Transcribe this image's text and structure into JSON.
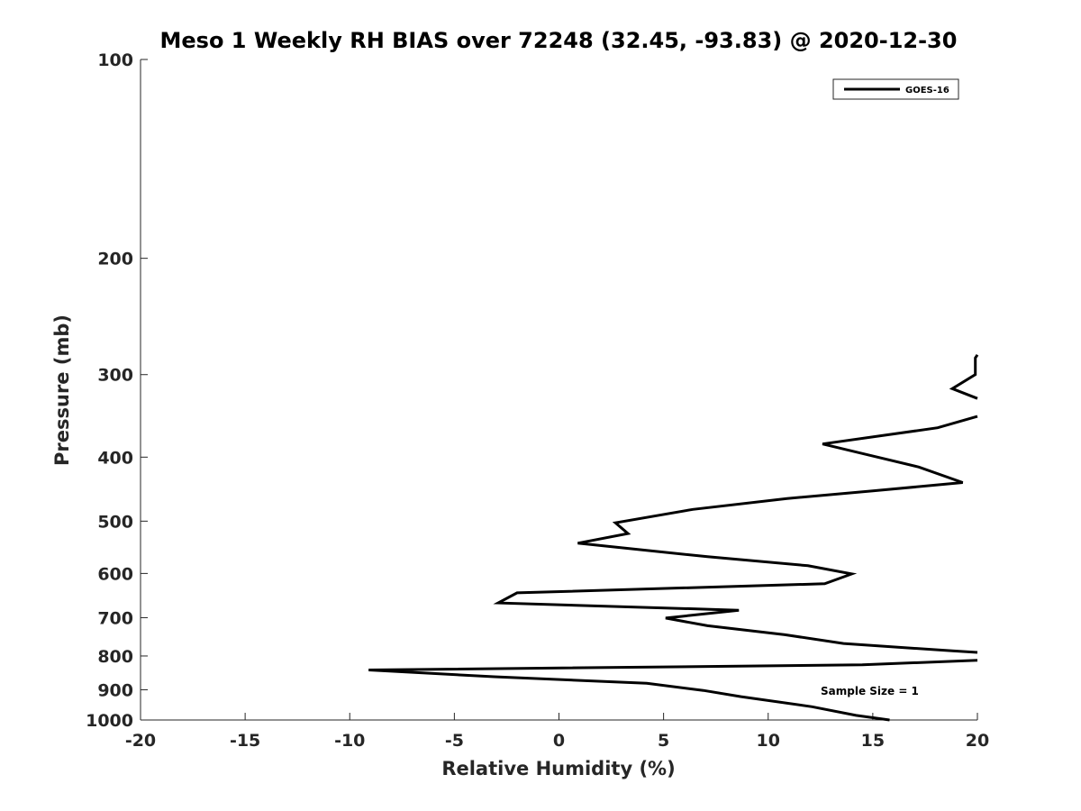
{
  "chart_data": {
    "type": "line",
    "title": "Meso 1 Weekly RH BIAS over 72248 (32.45, -93.83) @ 2020-12-30",
    "xlabel": "Relative Humidity (%)",
    "ylabel": "Pressure (mb)",
    "xlim": [
      -20,
      20
    ],
    "ylim": [
      100,
      1000
    ],
    "y_scale": "log",
    "y_reversed": true,
    "xticks": [
      -20,
      -15,
      -10,
      -5,
      0,
      5,
      10,
      15,
      20
    ],
    "yticks": [
      100,
      200,
      300,
      400,
      500,
      600,
      700,
      800,
      900,
      1000
    ],
    "grid": false,
    "legend_position": "top-right",
    "series": [
      {
        "name": "GOES-16",
        "color": "#000000",
        "segments": [
          [
            {
              "x": 20.0,
              "y": 280
            },
            {
              "x": 19.9,
              "y": 283
            },
            {
              "x": 19.9,
              "y": 300
            },
            {
              "x": 18.8,
              "y": 315
            },
            {
              "x": 20.0,
              "y": 326
            }
          ],
          [
            {
              "x": 20.0,
              "y": 347
            },
            {
              "x": 18.1,
              "y": 361
            },
            {
              "x": 12.6,
              "y": 382
            },
            {
              "x": 14.8,
              "y": 397
            },
            {
              "x": 17.2,
              "y": 414
            },
            {
              "x": 19.3,
              "y": 437
            },
            {
              "x": 15.0,
              "y": 450
            },
            {
              "x": 10.9,
              "y": 462
            },
            {
              "x": 6.4,
              "y": 480
            },
            {
              "x": 2.7,
              "y": 503
            },
            {
              "x": 3.3,
              "y": 522
            },
            {
              "x": 0.9,
              "y": 540
            },
            {
              "x": 7.1,
              "y": 566
            },
            {
              "x": 11.9,
              "y": 584
            },
            {
              "x": 14.0,
              "y": 601
            },
            {
              "x": 12.7,
              "y": 622
            },
            {
              "x": -2.0,
              "y": 642
            },
            {
              "x": -2.9,
              "y": 665
            },
            {
              "x": 8.6,
              "y": 682
            },
            {
              "x": 5.1,
              "y": 701
            },
            {
              "x": 7.1,
              "y": 720
            },
            {
              "x": 10.8,
              "y": 743
            },
            {
              "x": 13.6,
              "y": 766
            },
            {
              "x": 18.8,
              "y": 786
            },
            {
              "x": 20.0,
              "y": 790
            }
          ],
          [
            {
              "x": 20.0,
              "y": 812
            },
            {
              "x": 14.5,
              "y": 825
            },
            {
              "x": -9.1,
              "y": 840
            },
            {
              "x": -3.1,
              "y": 860
            },
            {
              "x": 4.2,
              "y": 880
            },
            {
              "x": 6.9,
              "y": 902
            },
            {
              "x": 8.7,
              "y": 922
            },
            {
              "x": 12.1,
              "y": 955
            },
            {
              "x": 14.2,
              "y": 984
            },
            {
              "x": 15.8,
              "y": 1000
            }
          ]
        ]
      }
    ],
    "annotations": [
      {
        "text": "Sample Size = 1",
        "x": 12.5,
        "y": 900
      }
    ]
  }
}
